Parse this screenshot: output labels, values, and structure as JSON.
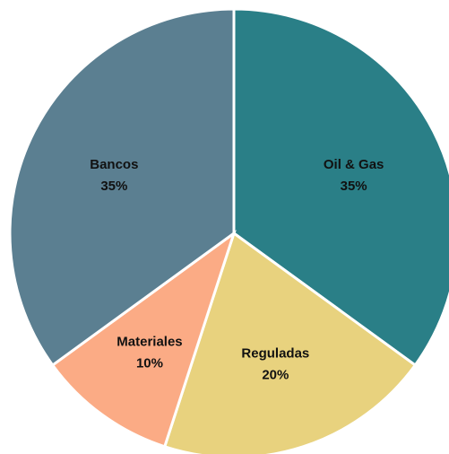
{
  "chart_data": {
    "type": "pie",
    "slices": [
      {
        "label": "Oil & Gas",
        "value": 35,
        "value_label": "35%",
        "color": "#2a7f87"
      },
      {
        "label": "Reguladas",
        "value": 20,
        "value_label": "20%",
        "color": "#e8d27e"
      },
      {
        "label": "Materiales",
        "value": 10,
        "value_label": "10%",
        "color": "#fbab85"
      },
      {
        "label": "Bancos",
        "value": 35,
        "value_label": "35%",
        "color": "#5b7f91"
      }
    ],
    "start": "top",
    "direction": "clockwise",
    "legend": "none"
  }
}
